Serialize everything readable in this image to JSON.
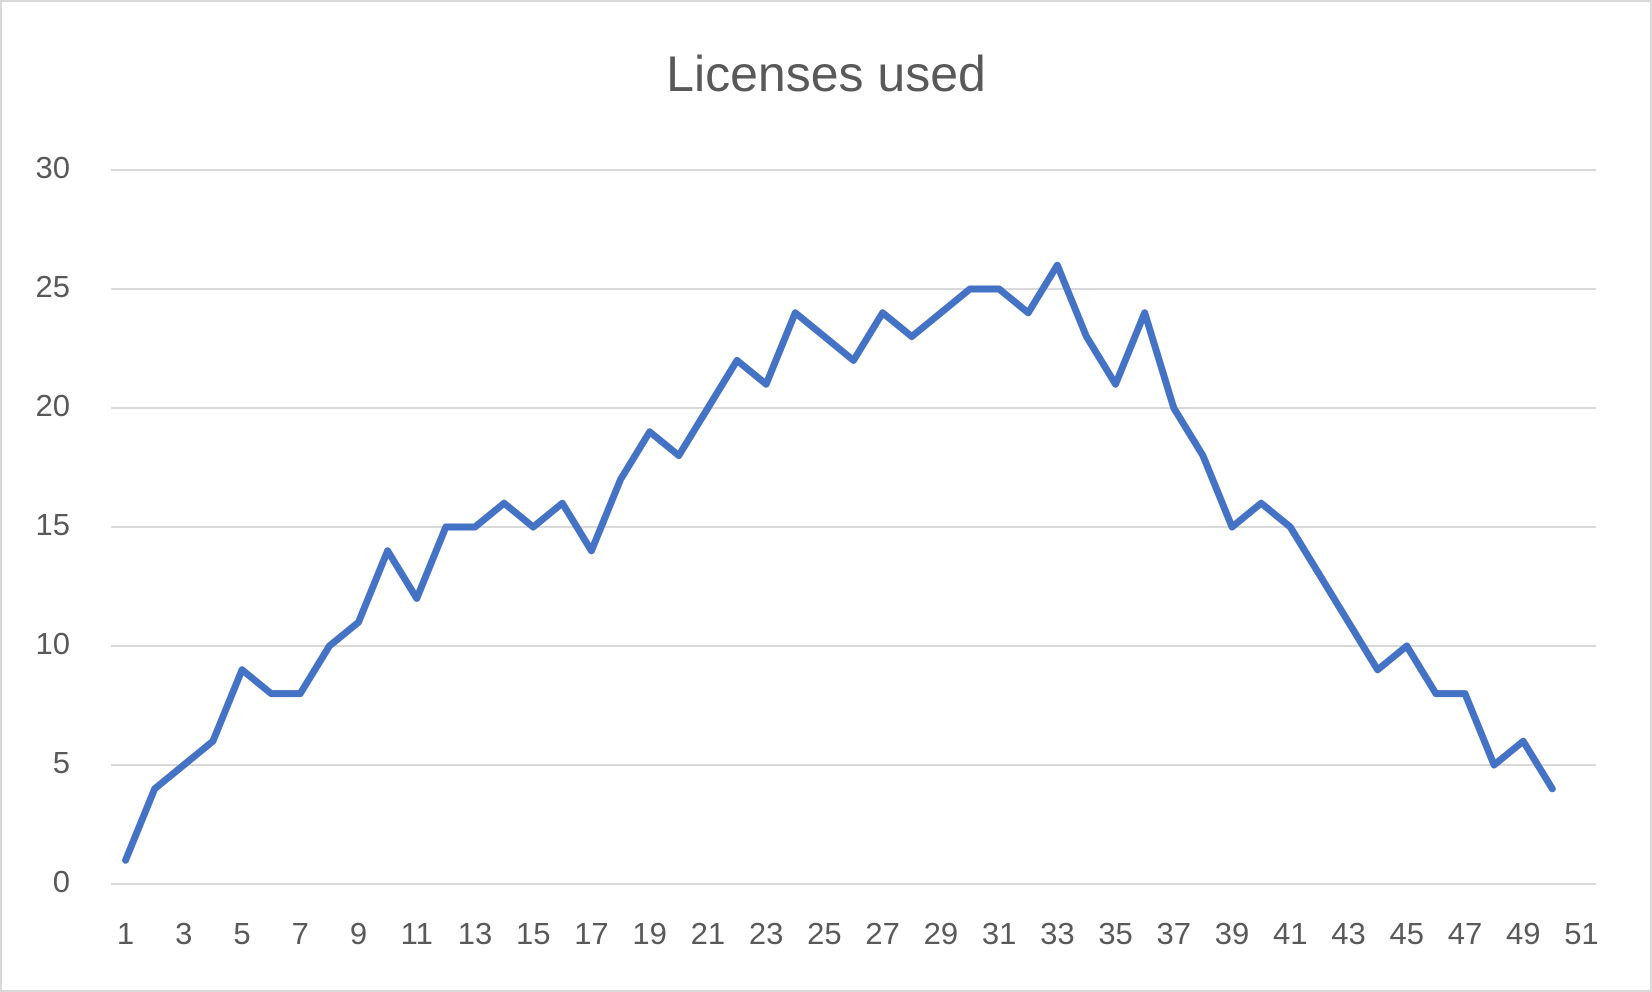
{
  "chart_data": {
    "type": "line",
    "title": "Licenses used",
    "categories": [
      1,
      null,
      3,
      null,
      5,
      null,
      7,
      null,
      9,
      null,
      11,
      null,
      13,
      null,
      15,
      null,
      17,
      null,
      19,
      null,
      21,
      null,
      23,
      null,
      25,
      null,
      27,
      null,
      29,
      null,
      31,
      null,
      33,
      null,
      35,
      null,
      37,
      null,
      39,
      null,
      41,
      null,
      43,
      null,
      45,
      null,
      47,
      null,
      49,
      null,
      51
    ],
    "values": [
      1,
      4,
      5,
      6,
      9,
      8,
      8,
      10,
      11,
      14,
      12,
      15,
      15,
      16,
      15,
      16,
      14,
      17,
      19,
      18,
      20,
      22,
      21,
      24,
      23,
      22,
      24,
      23,
      24,
      25,
      25,
      24,
      26,
      23,
      21,
      24,
      20,
      18,
      15,
      16,
      15,
      13,
      11,
      9,
      10,
      8,
      8,
      5,
      6,
      4,
      null
    ],
    "color": "#4472c4",
    "ylim": [
      0,
      30
    ],
    "yticks": [
      0,
      5,
      10,
      15,
      20,
      25,
      30
    ],
    "grid": true
  }
}
